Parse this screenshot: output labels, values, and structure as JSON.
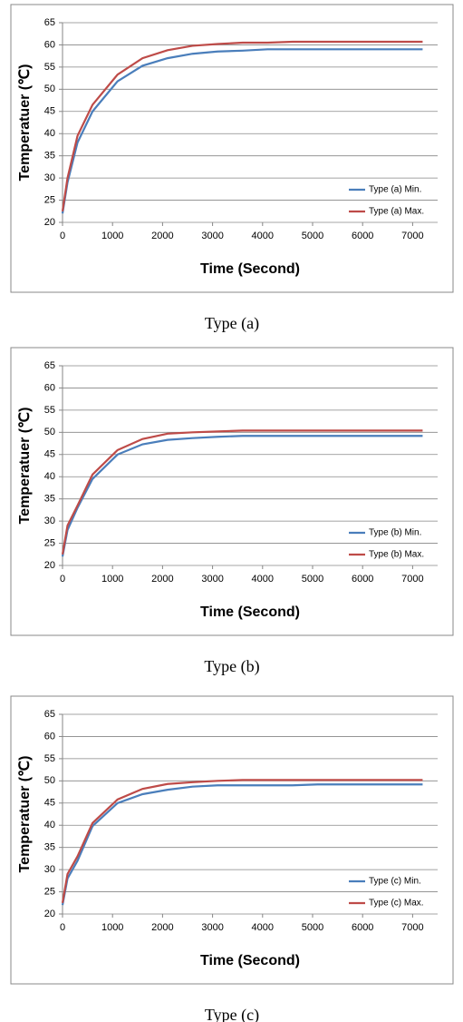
{
  "chart_data": [
    {
      "type": "line",
      "caption": "Type (a)",
      "xlabel": "Time (Second)",
      "ylabel": "Temperatuer (℃)",
      "x": [
        0,
        100,
        300,
        600,
        1100,
        1600,
        2100,
        2600,
        3100,
        3600,
        4100,
        4600,
        5100,
        5600,
        6100,
        6600,
        7200
      ],
      "series": [
        {
          "name": "Type (a) Min.",
          "color": "#4a7ebb",
          "values": [
            22,
            29,
            38,
            45,
            51.8,
            55.3,
            57,
            58,
            58.5,
            58.7,
            59,
            59,
            59,
            59,
            59,
            59,
            59
          ]
        },
        {
          "name": "Type (a) Max.",
          "color": "#be4b48",
          "values": [
            22.5,
            30,
            39.5,
            46.5,
            53.3,
            57,
            58.8,
            59.8,
            60.2,
            60.5,
            60.5,
            60.7,
            60.7,
            60.7,
            60.7,
            60.7,
            60.7
          ]
        }
      ],
      "xlim": [
        0,
        7500
      ],
      "xticks": [
        0,
        1000,
        2000,
        3000,
        4000,
        5000,
        6000,
        7000
      ],
      "ylim": [
        20,
        65
      ],
      "yticks": [
        20,
        25,
        30,
        35,
        40,
        45,
        50,
        55,
        60,
        65
      ],
      "grid": true,
      "legend": "lower right"
    },
    {
      "type": "line",
      "caption": "Type (b)",
      "xlabel": "Time (Second)",
      "ylabel": "Temperatuer (℃)",
      "x": [
        0,
        100,
        300,
        600,
        1100,
        1600,
        2100,
        2600,
        3100,
        3600,
        4100,
        4600,
        5100,
        5600,
        6100,
        6600,
        7200
      ],
      "series": [
        {
          "name": "Type (b) Min.",
          "color": "#4a7ebb",
          "values": [
            22,
            28,
            33,
            39.5,
            45,
            47.3,
            48.3,
            48.7,
            49,
            49.2,
            49.2,
            49.2,
            49.2,
            49.2,
            49.2,
            49.2,
            49.2
          ]
        },
        {
          "name": "Type (b) Max.",
          "color": "#be4b48",
          "values": [
            22.5,
            29,
            33.5,
            40.5,
            46,
            48.5,
            49.7,
            50,
            50.2,
            50.4,
            50.4,
            50.4,
            50.4,
            50.4,
            50.4,
            50.4,
            50.4
          ]
        }
      ],
      "xlim": [
        0,
        7500
      ],
      "xticks": [
        0,
        1000,
        2000,
        3000,
        4000,
        5000,
        6000,
        7000
      ],
      "ylim": [
        20,
        65
      ],
      "yticks": [
        20,
        25,
        30,
        35,
        40,
        45,
        50,
        55,
        60,
        65
      ],
      "grid": true,
      "legend": "lower right"
    },
    {
      "type": "line",
      "caption": "Type (c)",
      "xlabel": "Time (Second)",
      "ylabel": "Temperatuer (℃)",
      "x": [
        0,
        100,
        300,
        600,
        1100,
        1600,
        2100,
        2600,
        3100,
        3600,
        4100,
        4600,
        5100,
        5600,
        6100,
        6600,
        7200
      ],
      "series": [
        {
          "name": "Type (c) Min.",
          "color": "#4a7ebb",
          "values": [
            22,
            28,
            32,
            39.8,
            45,
            47,
            48,
            48.7,
            49,
            49,
            49,
            49,
            49.2,
            49.2,
            49.2,
            49.2,
            49.2
          ]
        },
        {
          "name": "Type (c) Max.",
          "color": "#be4b48",
          "values": [
            22.5,
            29,
            33,
            40.5,
            45.8,
            48.2,
            49.3,
            49.7,
            50,
            50.2,
            50.2,
            50.2,
            50.2,
            50.2,
            50.2,
            50.2,
            50.2
          ]
        }
      ],
      "xlim": [
        0,
        7500
      ],
      "xticks": [
        0,
        1000,
        2000,
        3000,
        4000,
        5000,
        6000,
        7000
      ],
      "ylim": [
        20,
        65
      ],
      "yticks": [
        20,
        25,
        30,
        35,
        40,
        45,
        50,
        55,
        60,
        65
      ],
      "grid": true,
      "legend": "lower right"
    }
  ]
}
